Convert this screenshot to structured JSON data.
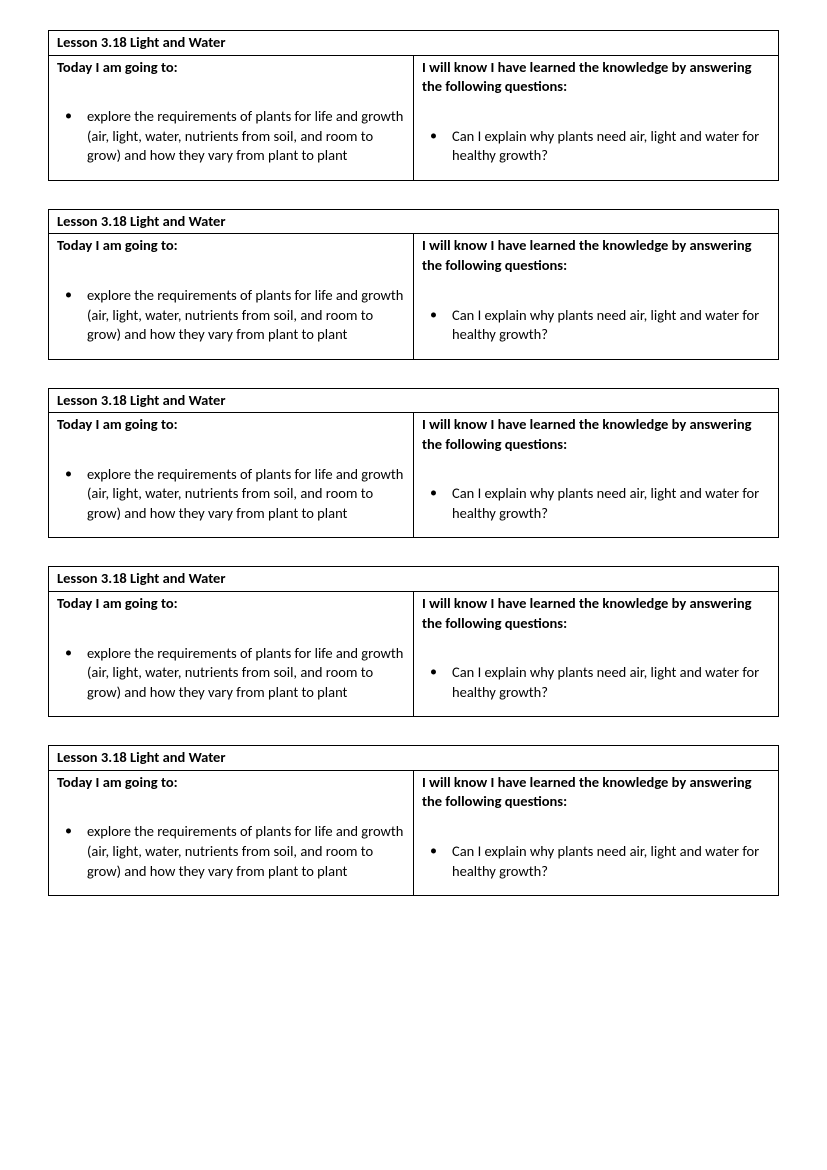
{
  "lesson": {
    "title": "Lesson 3.18 Light and Water",
    "left_header": "Today I am going to:",
    "right_header": "I will know I have learned the knowledge by answering the following questions:",
    "left_bullet": "explore the requirements of plants for life and growth (air, light, water, nutrients from soil, and room to grow) and how they vary from plant to plant",
    "right_bullet": "Can I explain why plants need air, light and water for healthy growth?"
  },
  "repeat_count": 5
}
